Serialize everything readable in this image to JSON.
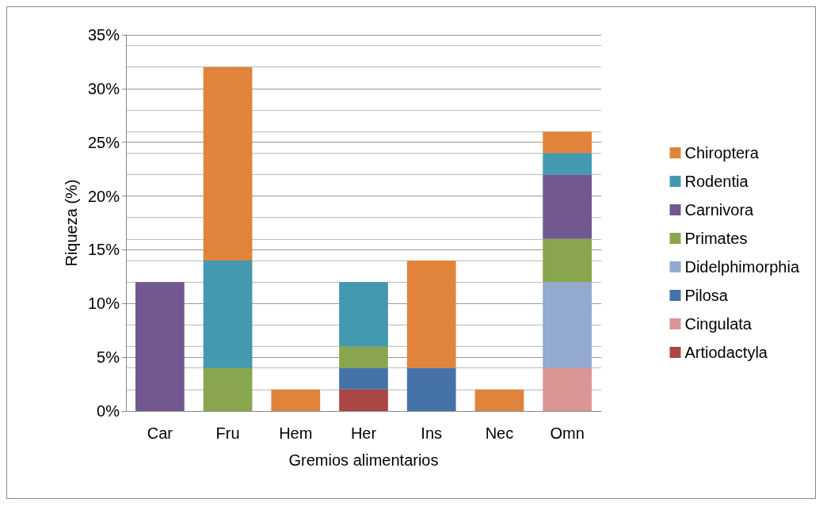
{
  "chart_data": {
    "type": "bar",
    "stacked": true,
    "xlabel": "Gremios alimentarios",
    "ylabel": "Riqueza (%)",
    "categories": [
      "Car",
      "Fru",
      "Hem",
      "Her",
      "Ins",
      "Nec",
      "Omn"
    ],
    "series": [
      {
        "name": "Artiodactyla",
        "color": "#aa4643",
        "values": [
          null,
          null,
          null,
          2,
          null,
          null,
          null
        ]
      },
      {
        "name": "Cingulata",
        "color": "#d99694",
        "values": [
          null,
          null,
          null,
          null,
          null,
          null,
          4
        ]
      },
      {
        "name": "Pilosa",
        "color": "#4572a7",
        "values": [
          null,
          null,
          null,
          2,
          4,
          null,
          null
        ]
      },
      {
        "name": "Didelphimorphia",
        "color": "#93a9cf",
        "values": [
          null,
          null,
          null,
          null,
          null,
          null,
          8
        ]
      },
      {
        "name": "Primates",
        "color": "#89a54e",
        "values": [
          null,
          4,
          null,
          2,
          null,
          null,
          4
        ]
      },
      {
        "name": "Carnivora",
        "color": "#71588f",
        "values": [
          12,
          null,
          null,
          null,
          null,
          null,
          6
        ]
      },
      {
        "name": "Rodentia",
        "color": "#4299b0",
        "values": [
          null,
          10,
          null,
          6,
          null,
          null,
          2
        ]
      },
      {
        "name": "Chiroptera",
        "color": "#e0843c",
        "values": [
          null,
          18,
          2,
          null,
          10,
          2,
          2
        ]
      }
    ],
    "ylim": [
      0,
      35
    ],
    "yticks": [
      {
        "value": 0,
        "label": "0%"
      },
      {
        "value": 5,
        "label": "5%"
      },
      {
        "value": 10,
        "label": "10%"
      },
      {
        "value": 15,
        "label": "15%"
      },
      {
        "value": 20,
        "label": "20%"
      },
      {
        "value": 25,
        "label": "25%"
      },
      {
        "value": 30,
        "label": "30%"
      },
      {
        "value": 35,
        "label": "35%"
      }
    ],
    "grid": true,
    "legend": "right"
  }
}
